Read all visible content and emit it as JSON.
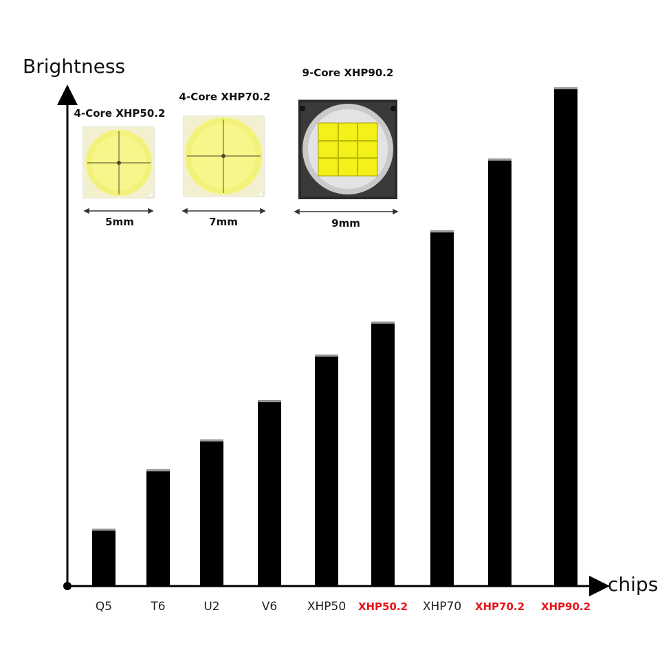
{
  "chart_data": {
    "type": "bar",
    "ylabel": "Brightness",
    "xlabel": "chips",
    "categories": [
      "Q5",
      "T6",
      "U2",
      "V6",
      "XHP50",
      "XHP50.2",
      "XHP70",
      "XHP70.2",
      "XHP90.2"
    ],
    "values": [
      11.5,
      23.4,
      29.4,
      37.3,
      46.4,
      53.0,
      71.3,
      85.7,
      100.0
    ],
    "highlighted": [
      "XHP50.2",
      "XHP70.2",
      "XHP90.2"
    ],
    "ylim": [
      0,
      100
    ],
    "grid": false,
    "bar_color": "#000000",
    "highlight_color": "#e8141b",
    "label_color": "#222222"
  },
  "chips": [
    {
      "name": "4-Core XHP50.2",
      "size": "5mm",
      "cells": 4
    },
    {
      "name": "4-Core XHP70.2",
      "size": "7mm",
      "cells": 4
    },
    {
      "name": "9-Core XHP90.2",
      "size": "9mm",
      "cells": 9
    }
  ]
}
